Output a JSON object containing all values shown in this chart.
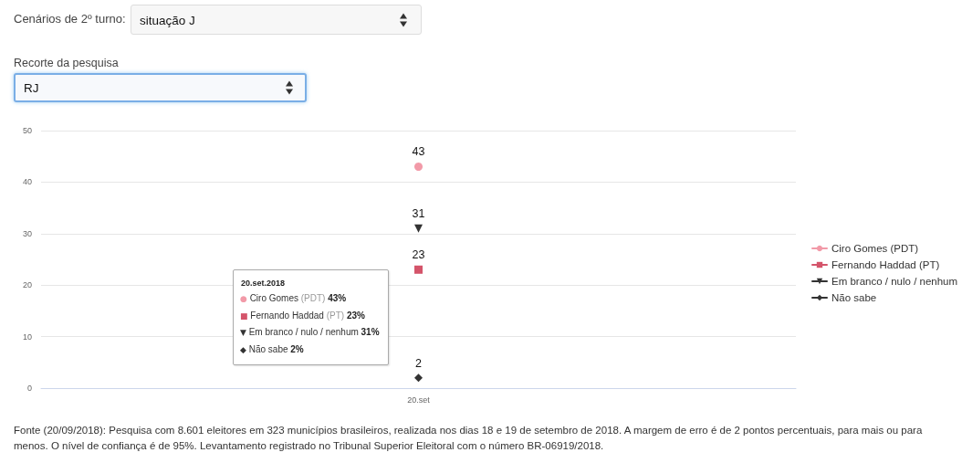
{
  "chart_data": {
    "type": "line",
    "categories": [
      "20.set"
    ],
    "ylim": [
      0,
      50
    ],
    "yticks": [
      0,
      10,
      20,
      30,
      40,
      50
    ],
    "grid": "y",
    "legend": "right",
    "data_labels": true,
    "line_style": "solid",
    "series": [
      {
        "name": "Ciro Gomes (PDT)",
        "color": "#f29aa8",
        "marker": "circle",
        "values": [
          43
        ]
      },
      {
        "name": "Fernando Haddad (PT)",
        "color": "#d4546a",
        "marker": "square",
        "values": [
          23
        ]
      },
      {
        "name": "Em branco / nulo / nenhum",
        "color": "#333333",
        "marker": "triangle",
        "values": [
          31
        ]
      },
      {
        "name": "Não sabe",
        "color": "#333333",
        "marker": "diamond",
        "values": [
          2
        ]
      }
    ],
    "annotations": [
      "Cenários de 2º turno:",
      "situação J",
      "Recorte da pesquisa",
      "RJ",
      "20.set.2018",
      "● Ciro Gomes (PDT) 43%",
      "■ Fernando Haddad (PT) 23%",
      "▼ Em branco / nulo / nenhum 31%",
      "◆ Não sabe 2%",
      "Fonte (20/09/2018): Pesquisa com 8.601 eleitores em 323 municípios brasileiros, realizada nos dias 18 e 19 de setembro de 2018. A margem de erro é de 2 pontos percentuais, para mais ou para menos. O nível de confiança é de 95%. Levantamento registrado no Tribunal Superior Eleitoral com o número BR-06919/2018."
    ]
  }
}
